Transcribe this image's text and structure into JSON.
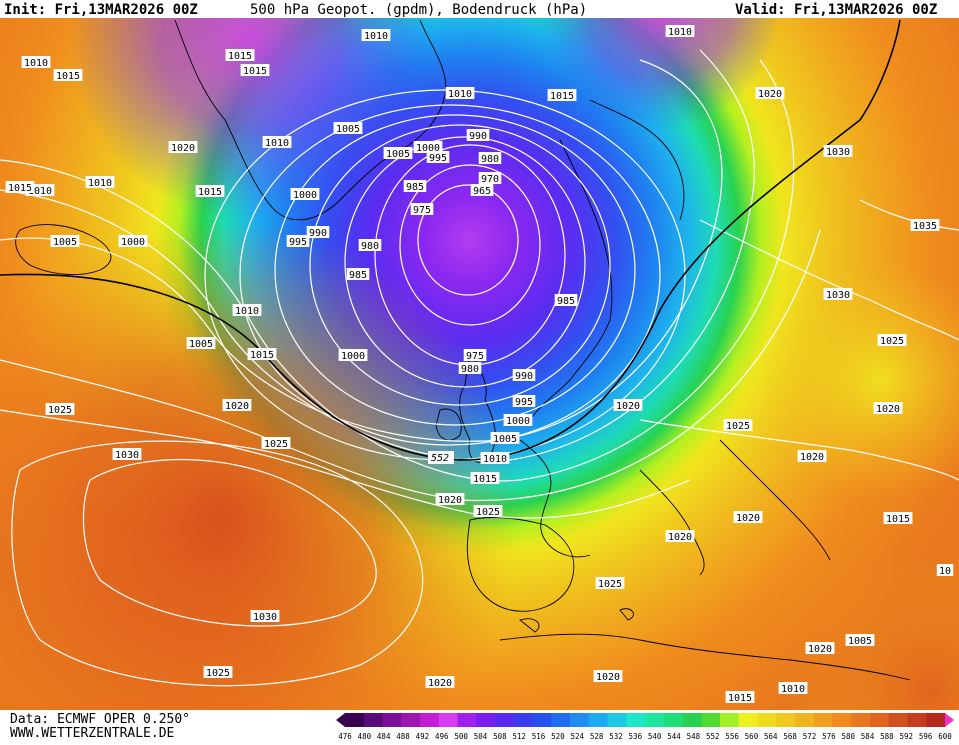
{
  "header": {
    "init": "Init: Fri,13MAR2026 00Z",
    "title": "500 hPa Geopot. (gpdm), Bodendruck (hPa)",
    "valid": "Valid: Fri,13MAR2026 00Z"
  },
  "footer": {
    "data_source": "Data: ECMWF OPER 0.250°",
    "website": "WWW.WETTERZENTRALE.DE"
  },
  "colorbar": {
    "values": [
      476,
      480,
      484,
      488,
      492,
      496,
      500,
      504,
      508,
      512,
      516,
      520,
      524,
      528,
      532,
      536,
      540,
      544,
      548,
      552,
      556,
      560,
      564,
      568,
      572,
      576,
      580,
      584,
      588,
      592,
      596,
      600
    ],
    "colors": [
      "#3a0050",
      "#5a0a78",
      "#7a0e96",
      "#a014b4",
      "#c41ed2",
      "#d83cf0",
      "#a020f0",
      "#7a1ef0",
      "#5a28f0",
      "#3c3cf0",
      "#2850f0",
      "#1e6ef0",
      "#1e8cf0",
      "#1eaaf0",
      "#1ec8e6",
      "#1ee6c8",
      "#1ee6a0",
      "#1edc78",
      "#28d250",
      "#50dc32",
      "#a0f028",
      "#f0f01e",
      "#f0dc1e",
      "#f0c81e",
      "#f0b41e",
      "#f0a01e",
      "#f08c1e",
      "#e8781e",
      "#e0641e",
      "#d2501e",
      "#c83c1e",
      "#b4281e"
    ]
  },
  "isobar_labels": [
    {
      "v": "1010"
    },
    {
      "v": "1015"
    },
    {
      "v": "1015"
    },
    {
      "v": "1015"
    },
    {
      "v": "1010"
    },
    {
      "v": "1010"
    },
    {
      "v": "1010"
    },
    {
      "v": "1015"
    },
    {
      "v": "1015"
    },
    {
      "v": "1010"
    },
    {
      "v": "1020"
    },
    {
      "v": "1010"
    },
    {
      "v": "1005"
    },
    {
      "v": "1005"
    },
    {
      "v": "1020"
    },
    {
      "v": "1030"
    },
    {
      "v": "990"
    },
    {
      "v": "1000"
    },
    {
      "v": "995"
    },
    {
      "v": "980"
    },
    {
      "v": "970"
    },
    {
      "v": "965"
    },
    {
      "v": "985"
    },
    {
      "v": "975"
    },
    {
      "v": "1015"
    },
    {
      "v": "1010"
    },
    {
      "v": "1015"
    },
    {
      "v": "1000"
    },
    {
      "v": "1005"
    },
    {
      "v": "1000"
    },
    {
      "v": "995"
    },
    {
      "v": "990"
    },
    {
      "v": "980"
    },
    {
      "v": "985"
    },
    {
      "v": "985"
    },
    {
      "v": "1010"
    },
    {
      "v": "1005"
    },
    {
      "v": "1015"
    },
    {
      "v": "1000"
    },
    {
      "v": "975"
    },
    {
      "v": "980"
    },
    {
      "v": "990"
    },
    {
      "v": "995"
    },
    {
      "v": "1000"
    },
    {
      "v": "1005"
    },
    {
      "v": "1010"
    },
    {
      "v": "1015"
    },
    {
      "v": "1020"
    },
    {
      "v": "1025"
    },
    {
      "v": "1020"
    },
    {
      "v": "1025"
    },
    {
      "v": "1030"
    },
    {
      "v": "1020"
    },
    {
      "v": "1025"
    },
    {
      "v": "1020"
    },
    {
      "v": "1020"
    },
    {
      "v": "1030"
    },
    {
      "v": "1035"
    },
    {
      "v": "1025"
    },
    {
      "v": "1020"
    },
    {
      "v": "1020"
    },
    {
      "v": "1015"
    },
    {
      "v": "1020"
    },
    {
      "v": "1025"
    },
    {
      "v": "1030"
    },
    {
      "v": "1025"
    },
    {
      "v": "1020"
    },
    {
      "v": "1020"
    },
    {
      "v": "1015"
    },
    {
      "v": "1010"
    },
    {
      "v": "1005"
    },
    {
      "v": "10"
    },
    {
      "v": "1025"
    }
  ],
  "contour_label_552": "552",
  "colors": {
    "land_outline": "#000000",
    "isobar": "#ffffff",
    "contour_552": "#000000"
  }
}
